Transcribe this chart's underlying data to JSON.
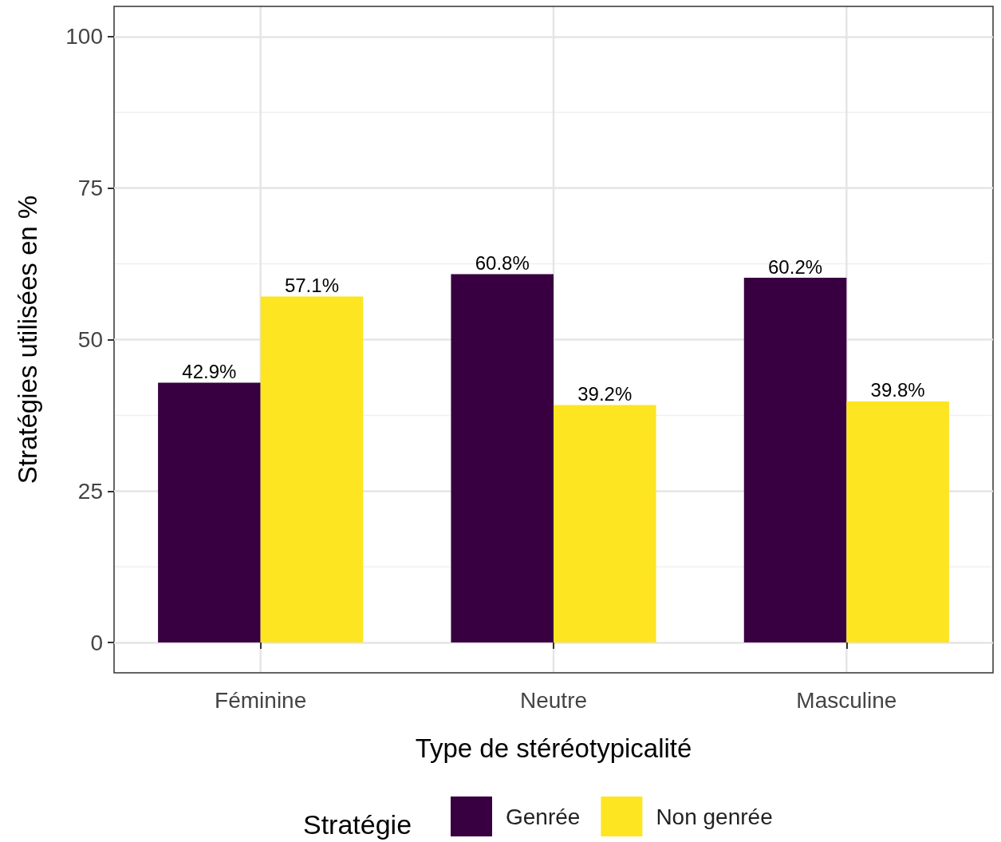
{
  "chart_data": {
    "type": "bar",
    "xlabel": "Type de stéréotypicalité",
    "ylabel": "Stratégies utilisées en %",
    "legend_title": "Stratégie",
    "categories": [
      "Féminine",
      "Neutre",
      "Masculine"
    ],
    "series": [
      {
        "name": "Genrée",
        "color": "#380040",
        "values": [
          42.9,
          60.8,
          60.2
        ],
        "value_labels": [
          "42.9%",
          "60.8%",
          "60.2%"
        ]
      },
      {
        "name": "Non genrée",
        "color": "#fde521",
        "values": [
          57.1,
          39.2,
          39.8
        ],
        "value_labels": [
          "57.1%",
          "39.2%",
          "39.8%"
        ]
      }
    ],
    "ylim": [
      -5,
      105
    ],
    "yticks": [
      0,
      25,
      50,
      75,
      100
    ],
    "grid": true,
    "legend": "bottom"
  }
}
